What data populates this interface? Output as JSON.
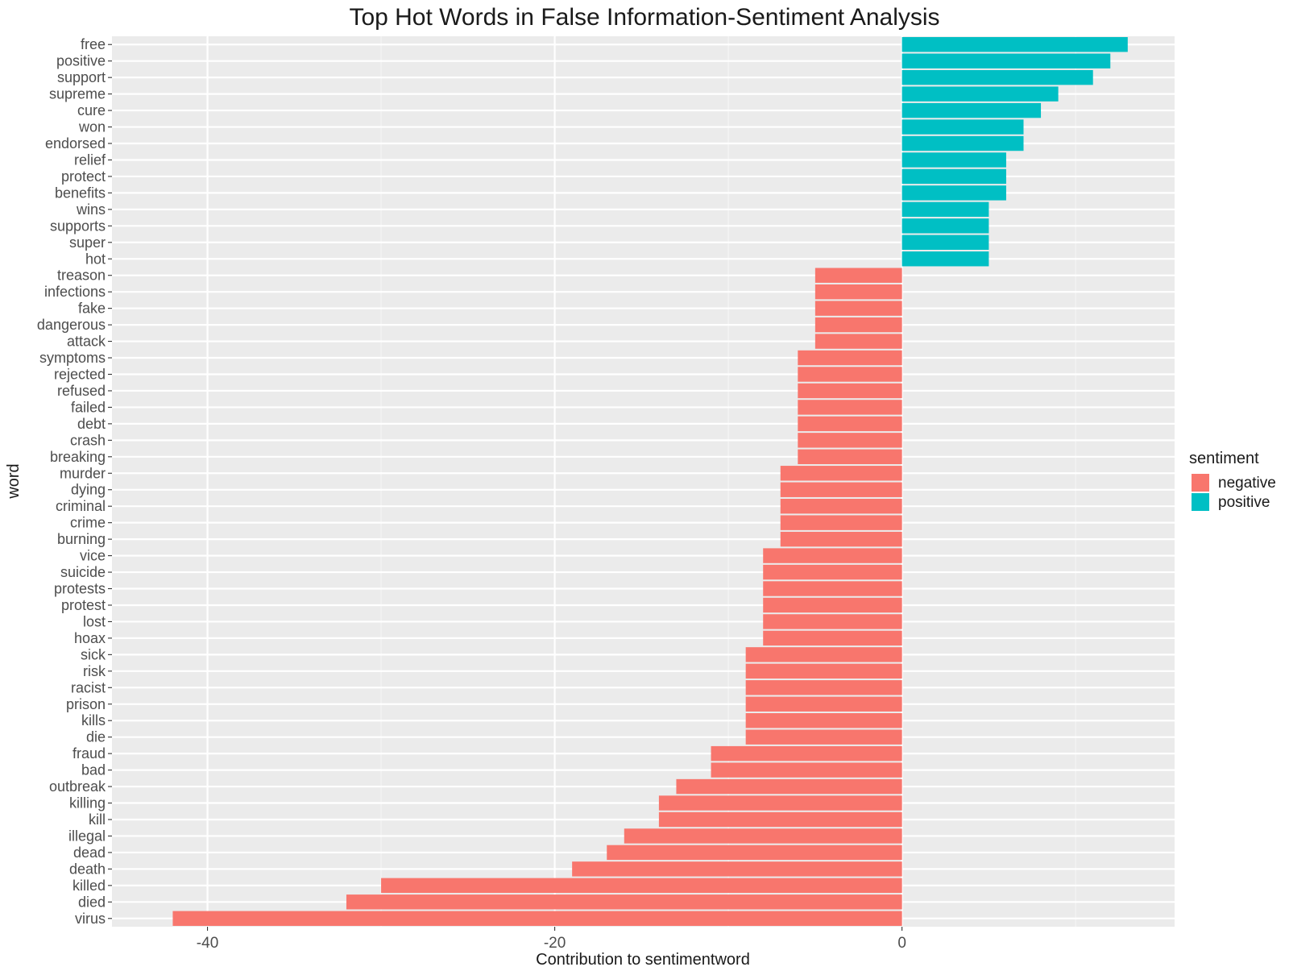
{
  "chart_data": {
    "type": "bar",
    "orientation": "horizontal",
    "title": "Top Hot Words in False Information-Sentiment Analysis",
    "xlabel": "Contribution to sentimentword",
    "ylabel": "word",
    "xlim": [
      -45.5,
      15.7
    ],
    "x_ticks": [
      -40,
      -20,
      0
    ],
    "x_tick_labels": [
      "-40",
      "-20",
      "0"
    ],
    "x_minor_ticks": [
      -30,
      -10,
      10
    ],
    "grid": true,
    "legend": {
      "title": "sentiment",
      "placement": "right",
      "entries": [
        {
          "name": "negative",
          "color": "#F8766D"
        },
        {
          "name": "positive",
          "color": "#00BFC4"
        }
      ]
    },
    "bars": [
      {
        "word": "free",
        "value": 13,
        "sentiment": "positive"
      },
      {
        "word": "positive",
        "value": 12,
        "sentiment": "positive"
      },
      {
        "word": "support",
        "value": 11,
        "sentiment": "positive"
      },
      {
        "word": "supreme",
        "value": 9,
        "sentiment": "positive"
      },
      {
        "word": "cure",
        "value": 8,
        "sentiment": "positive"
      },
      {
        "word": "won",
        "value": 7,
        "sentiment": "positive"
      },
      {
        "word": "endorsed",
        "value": 7,
        "sentiment": "positive"
      },
      {
        "word": "relief",
        "value": 6,
        "sentiment": "positive"
      },
      {
        "word": "protect",
        "value": 6,
        "sentiment": "positive"
      },
      {
        "word": "benefits",
        "value": 6,
        "sentiment": "positive"
      },
      {
        "word": "wins",
        "value": 5,
        "sentiment": "positive"
      },
      {
        "word": "supports",
        "value": 5,
        "sentiment": "positive"
      },
      {
        "word": "super",
        "value": 5,
        "sentiment": "positive"
      },
      {
        "word": "hot",
        "value": 5,
        "sentiment": "positive"
      },
      {
        "word": "treason",
        "value": -5,
        "sentiment": "negative"
      },
      {
        "word": "infections",
        "value": -5,
        "sentiment": "negative"
      },
      {
        "word": "fake",
        "value": -5,
        "sentiment": "negative"
      },
      {
        "word": "dangerous",
        "value": -5,
        "sentiment": "negative"
      },
      {
        "word": "attack",
        "value": -5,
        "sentiment": "negative"
      },
      {
        "word": "symptoms",
        "value": -6,
        "sentiment": "negative"
      },
      {
        "word": "rejected",
        "value": -6,
        "sentiment": "negative"
      },
      {
        "word": "refused",
        "value": -6,
        "sentiment": "negative"
      },
      {
        "word": "failed",
        "value": -6,
        "sentiment": "negative"
      },
      {
        "word": "debt",
        "value": -6,
        "sentiment": "negative"
      },
      {
        "word": "crash",
        "value": -6,
        "sentiment": "negative"
      },
      {
        "word": "breaking",
        "value": -6,
        "sentiment": "negative"
      },
      {
        "word": "murder",
        "value": -7,
        "sentiment": "negative"
      },
      {
        "word": "dying",
        "value": -7,
        "sentiment": "negative"
      },
      {
        "word": "criminal",
        "value": -7,
        "sentiment": "negative"
      },
      {
        "word": "crime",
        "value": -7,
        "sentiment": "negative"
      },
      {
        "word": "burning",
        "value": -7,
        "sentiment": "negative"
      },
      {
        "word": "vice",
        "value": -8,
        "sentiment": "negative"
      },
      {
        "word": "suicide",
        "value": -8,
        "sentiment": "negative"
      },
      {
        "word": "protests",
        "value": -8,
        "sentiment": "negative"
      },
      {
        "word": "protest",
        "value": -8,
        "sentiment": "negative"
      },
      {
        "word": "lost",
        "value": -8,
        "sentiment": "negative"
      },
      {
        "word": "hoax",
        "value": -8,
        "sentiment": "negative"
      },
      {
        "word": "sick",
        "value": -9,
        "sentiment": "negative"
      },
      {
        "word": "risk",
        "value": -9,
        "sentiment": "negative"
      },
      {
        "word": "racist",
        "value": -9,
        "sentiment": "negative"
      },
      {
        "word": "prison",
        "value": -9,
        "sentiment": "negative"
      },
      {
        "word": "kills",
        "value": -9,
        "sentiment": "negative"
      },
      {
        "word": "die",
        "value": -9,
        "sentiment": "negative"
      },
      {
        "word": "fraud",
        "value": -11,
        "sentiment": "negative"
      },
      {
        "word": "bad",
        "value": -11,
        "sentiment": "negative"
      },
      {
        "word": "outbreak",
        "value": -13,
        "sentiment": "negative"
      },
      {
        "word": "killing",
        "value": -14,
        "sentiment": "negative"
      },
      {
        "word": "kill",
        "value": -14,
        "sentiment": "negative"
      },
      {
        "word": "illegal",
        "value": -16,
        "sentiment": "negative"
      },
      {
        "word": "dead",
        "value": -17,
        "sentiment": "negative"
      },
      {
        "word": "death",
        "value": -19,
        "sentiment": "negative"
      },
      {
        "word": "killed",
        "value": -30,
        "sentiment": "negative"
      },
      {
        "word": "died",
        "value": -32,
        "sentiment": "negative"
      },
      {
        "word": "virus",
        "value": -42,
        "sentiment": "negative"
      }
    ]
  }
}
